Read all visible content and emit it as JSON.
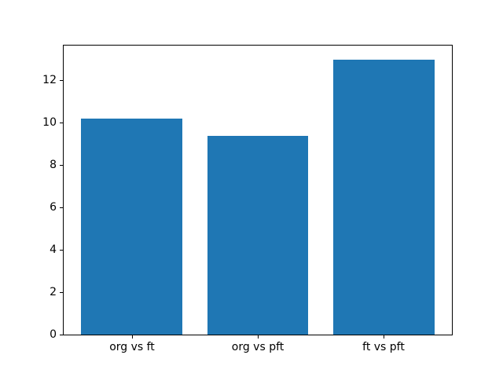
{
  "chart_data": {
    "type": "bar",
    "categories": [
      "org vs ft",
      "org vs pft",
      "ft vs pft"
    ],
    "values": [
      10.2,
      9.4,
      13.0
    ],
    "title": "",
    "xlabel": "",
    "ylabel": "",
    "ylim": [
      0,
      13.65
    ],
    "xlim": [
      -0.54,
      2.54
    ],
    "yticks": [
      0,
      2,
      4,
      6,
      8,
      10,
      12
    ],
    "bar_width": 0.8,
    "bar_color": "#1f77b4",
    "spine_color": "#000000",
    "background_color": "#ffffff",
    "grid": false,
    "legend": null
  }
}
